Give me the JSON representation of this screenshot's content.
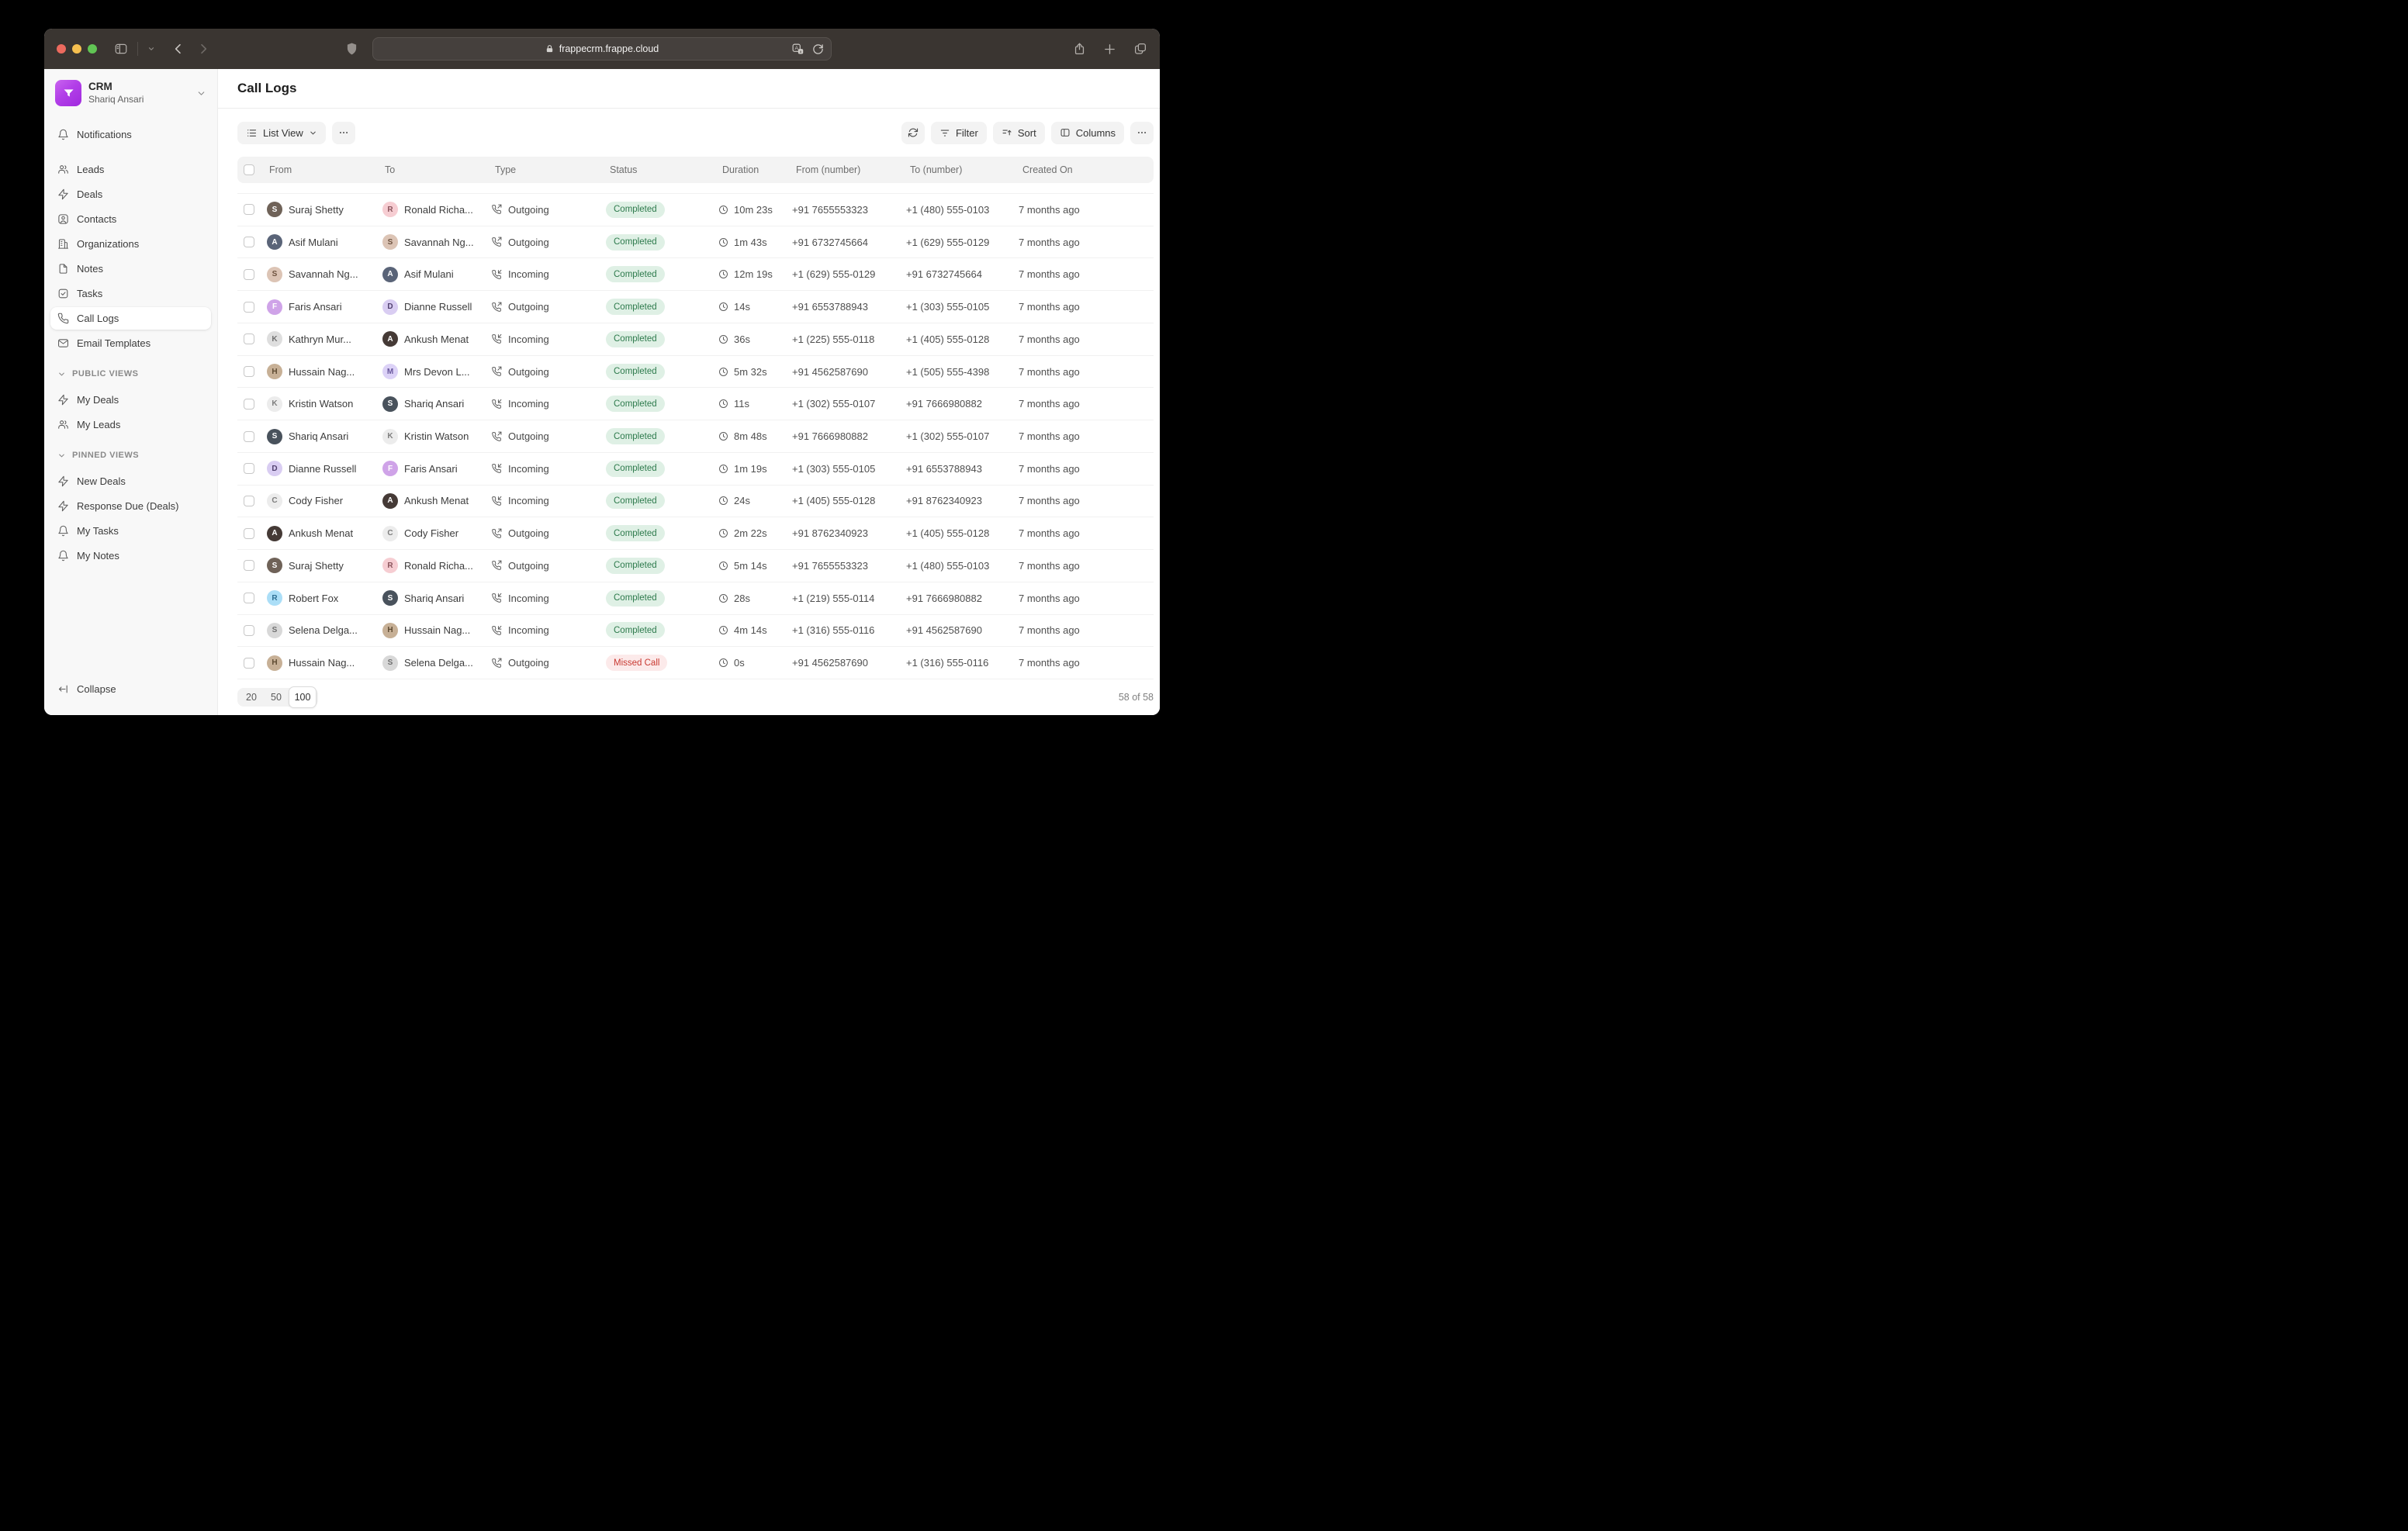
{
  "browser": {
    "url": "frappecrm.frappe.cloud"
  },
  "app": {
    "name": "CRM",
    "user": "Shariq Ansari"
  },
  "sidebar": {
    "items": [
      {
        "label": "Notifications",
        "icon": "bell"
      },
      {
        "label": "Leads",
        "icon": "users"
      },
      {
        "label": "Deals",
        "icon": "zap"
      },
      {
        "label": "Contacts",
        "icon": "contact-card"
      },
      {
        "label": "Organizations",
        "icon": "building"
      },
      {
        "label": "Notes",
        "icon": "file"
      },
      {
        "label": "Tasks",
        "icon": "check-square"
      },
      {
        "label": "Call Logs",
        "icon": "phone",
        "active": true
      },
      {
        "label": "Email Templates",
        "icon": "mail"
      }
    ],
    "sections": [
      {
        "label": "PUBLIC VIEWS",
        "items": [
          {
            "label": "My Deals",
            "icon": "zap"
          },
          {
            "label": "My Leads",
            "icon": "users"
          }
        ]
      },
      {
        "label": "PINNED VIEWS",
        "items": [
          {
            "label": "New Deals",
            "icon": "zap"
          },
          {
            "label": "Response Due (Deals)",
            "icon": "zap"
          },
          {
            "label": "My Tasks",
            "icon": "bell"
          },
          {
            "label": "My Notes",
            "icon": "bell"
          }
        ]
      }
    ],
    "collapse_label": "Collapse"
  },
  "page": {
    "title": "Call Logs"
  },
  "toolbar": {
    "view_switcher": "List View",
    "filter": "Filter",
    "sort": "Sort",
    "columns": "Columns"
  },
  "table": {
    "columns": [
      "From",
      "To",
      "Type",
      "Status",
      "Duration",
      "From (number)",
      "To (number)",
      "Created On"
    ],
    "people": {
      "suraj": {
        "initial": "S",
        "bg": "#6f6258",
        "ink": "#ffffff"
      },
      "ronald": {
        "initial": "R",
        "bg": "#f6cdd2",
        "ink": "#8a545c"
      },
      "asif": {
        "initial": "A",
        "bg": "#5a6478",
        "ink": "#ffffff"
      },
      "savannah": {
        "initial": "S",
        "bg": "#dcc4b5",
        "ink": "#6e5340"
      },
      "faris": {
        "initial": "F",
        "bg": "#cfa3e8",
        "ink": "#ffffff"
      },
      "dianne": {
        "initial": "D",
        "bg": "#d9cdf2",
        "ink": "#50406e"
      },
      "kathryn": {
        "initial": "K",
        "bg": "#dedede",
        "ink": "#6f6f6f"
      },
      "ankush": {
        "initial": "A",
        "bg": "#453a36",
        "ink": "#ffffff"
      },
      "hussain": {
        "initial": "H",
        "bg": "#c7b096",
        "ink": "#5e4b32"
      },
      "devon": {
        "initial": "M",
        "bg": "#dcd2f7",
        "ink": "#69589d"
      },
      "kristin": {
        "initial": "K",
        "bg": "#ececec",
        "ink": "#7d7d7d"
      },
      "shariq": {
        "initial": "S",
        "bg": "#49525c",
        "ink": "#ffffff"
      },
      "cody": {
        "initial": "C",
        "bg": "#ececec",
        "ink": "#7d7d7d"
      },
      "robert": {
        "initial": "R",
        "bg": "#abdef7",
        "ink": "#2e6f94"
      },
      "selena": {
        "initial": "S",
        "bg": "#d8d8d8",
        "ink": "#6f6f6f"
      }
    },
    "rows": [
      {
        "from": {
          "key": "suraj",
          "name": "Suraj Shetty"
        },
        "to": {
          "key": "ronald",
          "name": "Ronald Richa..."
        },
        "type": "Outgoing",
        "status": "Completed",
        "duration": "10m 23s",
        "from_number": "+91 7655553323",
        "to_number": "+1 (480) 555-0103",
        "created": "7 months ago"
      },
      {
        "from": {
          "key": "asif",
          "name": "Asif Mulani"
        },
        "to": {
          "key": "savannah",
          "name": "Savannah Ng..."
        },
        "type": "Outgoing",
        "status": "Completed",
        "duration": "1m 43s",
        "from_number": "+91 6732745664",
        "to_number": "+1 (629) 555-0129",
        "created": "7 months ago"
      },
      {
        "from": {
          "key": "savannah",
          "name": "Savannah Ng..."
        },
        "to": {
          "key": "asif",
          "name": "Asif Mulani"
        },
        "type": "Incoming",
        "status": "Completed",
        "duration": "12m 19s",
        "from_number": "+1 (629) 555-0129",
        "to_number": "+91 6732745664",
        "created": "7 months ago"
      },
      {
        "from": {
          "key": "faris",
          "name": "Faris Ansari"
        },
        "to": {
          "key": "dianne",
          "name": "Dianne Russell"
        },
        "type": "Outgoing",
        "status": "Completed",
        "duration": "14s",
        "from_number": "+91 6553788943",
        "to_number": "+1 (303) 555-0105",
        "created": "7 months ago"
      },
      {
        "from": {
          "key": "kathryn",
          "name": "Kathryn Mur..."
        },
        "to": {
          "key": "ankush",
          "name": "Ankush Menat"
        },
        "type": "Incoming",
        "status": "Completed",
        "duration": "36s",
        "from_number": "+1 (225) 555-0118",
        "to_number": "+1 (405) 555-0128",
        "created": "7 months ago"
      },
      {
        "from": {
          "key": "hussain",
          "name": "Hussain Nag..."
        },
        "to": {
          "key": "devon",
          "name": "Mrs Devon L..."
        },
        "type": "Outgoing",
        "status": "Completed",
        "duration": "5m 32s",
        "from_number": "+91 4562587690",
        "to_number": "+1 (505) 555-4398",
        "created": "7 months ago"
      },
      {
        "from": {
          "key": "kristin",
          "name": "Kristin Watson"
        },
        "to": {
          "key": "shariq",
          "name": "Shariq Ansari"
        },
        "type": "Incoming",
        "status": "Completed",
        "duration": "11s",
        "from_number": "+1 (302) 555-0107",
        "to_number": "+91 7666980882",
        "created": "7 months ago"
      },
      {
        "from": {
          "key": "shariq",
          "name": "Shariq Ansari"
        },
        "to": {
          "key": "kristin",
          "name": "Kristin Watson"
        },
        "type": "Outgoing",
        "status": "Completed",
        "duration": "8m 48s",
        "from_number": "+91 7666980882",
        "to_number": "+1 (302) 555-0107",
        "created": "7 months ago"
      },
      {
        "from": {
          "key": "dianne",
          "name": "Dianne Russell"
        },
        "to": {
          "key": "faris",
          "name": "Faris Ansari"
        },
        "type": "Incoming",
        "status": "Completed",
        "duration": "1m 19s",
        "from_number": "+1 (303) 555-0105",
        "to_number": "+91 6553788943",
        "created": "7 months ago"
      },
      {
        "from": {
          "key": "cody",
          "name": "Cody Fisher"
        },
        "to": {
          "key": "ankush",
          "name": "Ankush Menat"
        },
        "type": "Incoming",
        "status": "Completed",
        "duration": "24s",
        "from_number": "+1 (405) 555-0128",
        "to_number": "+91 8762340923",
        "created": "7 months ago"
      },
      {
        "from": {
          "key": "ankush",
          "name": "Ankush Menat"
        },
        "to": {
          "key": "cody",
          "name": "Cody Fisher"
        },
        "type": "Outgoing",
        "status": "Completed",
        "duration": "2m 22s",
        "from_number": "+91 8762340923",
        "to_number": "+1 (405) 555-0128",
        "created": "7 months ago"
      },
      {
        "from": {
          "key": "suraj",
          "name": "Suraj Shetty"
        },
        "to": {
          "key": "ronald",
          "name": "Ronald Richa..."
        },
        "type": "Outgoing",
        "status": "Completed",
        "duration": "5m 14s",
        "from_number": "+91 7655553323",
        "to_number": "+1 (480) 555-0103",
        "created": "7 months ago"
      },
      {
        "from": {
          "key": "robert",
          "name": "Robert Fox"
        },
        "to": {
          "key": "shariq",
          "name": "Shariq Ansari"
        },
        "type": "Incoming",
        "status": "Completed",
        "duration": "28s",
        "from_number": "+1 (219) 555-0114",
        "to_number": "+91 7666980882",
        "created": "7 months ago"
      },
      {
        "from": {
          "key": "selena",
          "name": "Selena Delga..."
        },
        "to": {
          "key": "hussain",
          "name": "Hussain Nag..."
        },
        "type": "Incoming",
        "status": "Completed",
        "duration": "4m 14s",
        "from_number": "+1 (316) 555-0116",
        "to_number": "+91 4562587690",
        "created": "7 months ago"
      },
      {
        "from": {
          "key": "hussain",
          "name": "Hussain Nag..."
        },
        "to": {
          "key": "selena",
          "name": "Selena Delga..."
        },
        "type": "Outgoing",
        "status": "Missed Call",
        "duration": "0s",
        "from_number": "+91 4562587690",
        "to_number": "+1 (316) 555-0116",
        "created": "7 months ago"
      }
    ]
  },
  "footer": {
    "page_sizes": [
      "20",
      "50",
      "100"
    ],
    "active_page_size": "100",
    "count": "58 of 58"
  },
  "colors": {
    "brand_purple": "#a82ae0",
    "status_completed_bg": "#dff0e5",
    "status_completed_text": "#2d7a4c",
    "status_missed_bg": "#fceaea",
    "status_missed_text": "#c93a32",
    "traffic_red": "#ec6a5e",
    "traffic_yellow": "#f5bf4f",
    "traffic_green": "#61c554",
    "titlebar_bg": "#3a3531",
    "sidebar_bg": "#f8f8f8"
  }
}
